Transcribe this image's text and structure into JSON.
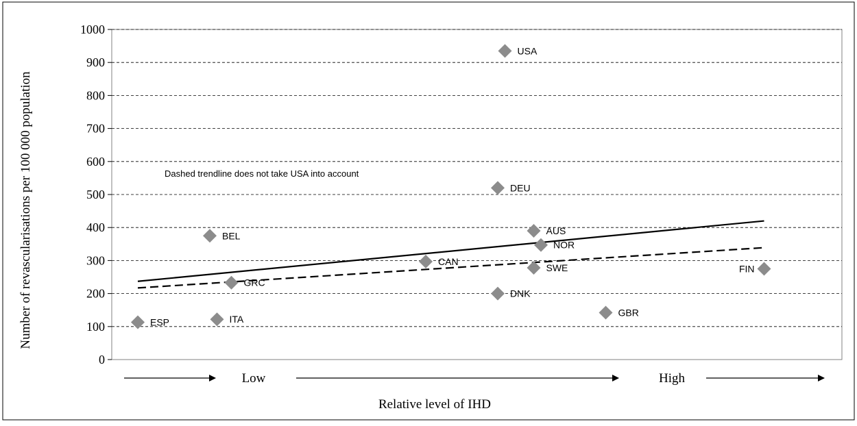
{
  "chart_data": {
    "type": "scatter",
    "ylabel": "Number of revascularisations per 100 000 population",
    "xlabel": "Relative level of IHD",
    "ylim": [
      0,
      1000
    ],
    "yticks": [
      0,
      100,
      200,
      300,
      400,
      500,
      600,
      700,
      800,
      900,
      1000
    ],
    "x_scale_labels": [
      "Low",
      "High"
    ],
    "grid": "horizontal dashed",
    "annotation": "Dashed trendline does not take USA into account",
    "points": [
      {
        "label": "ESP",
        "x": 0.02,
        "y": 113
      },
      {
        "label": "BEL",
        "x": 0.12,
        "y": 375
      },
      {
        "label": "GRC",
        "x": 0.15,
        "y": 233
      },
      {
        "label": "ITA",
        "x": 0.13,
        "y": 122
      },
      {
        "label": "CAN",
        "x": 0.42,
        "y": 297
      },
      {
        "label": "USA",
        "x": 0.53,
        "y": 935
      },
      {
        "label": "DEU",
        "x": 0.52,
        "y": 520
      },
      {
        "label": "DNK",
        "x": 0.52,
        "y": 200
      },
      {
        "label": "AUS",
        "x": 0.57,
        "y": 390
      },
      {
        "label": "NOR",
        "x": 0.58,
        "y": 347
      },
      {
        "label": "SWE",
        "x": 0.57,
        "y": 278
      },
      {
        "label": "GBR",
        "x": 0.67,
        "y": 142
      },
      {
        "label": "FIN",
        "x": 0.89,
        "y": 275
      }
    ],
    "trendlines": [
      {
        "style": "solid",
        "x": [
          0.02,
          0.89
        ],
        "y": [
          237,
          420
        ]
      },
      {
        "style": "dashed",
        "x": [
          0.02,
          0.89
        ],
        "y": [
          217,
          339
        ]
      }
    ],
    "colors": {
      "marker": "#8c8c8c",
      "line": "#000000",
      "grid": "#000000"
    }
  }
}
